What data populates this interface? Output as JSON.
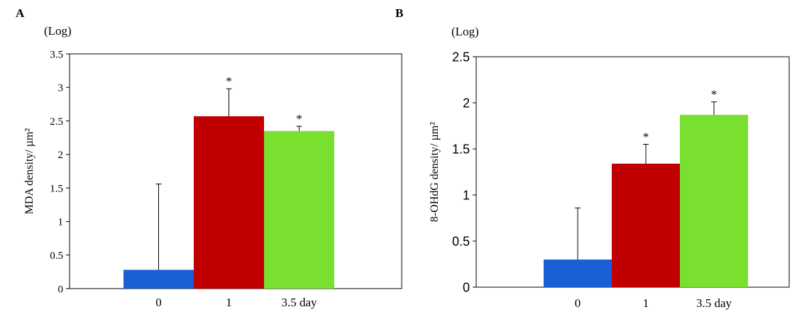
{
  "chart_data": [
    {
      "type": "bar",
      "panel": "A",
      "title": "",
      "ylabel": "MDA density/ µm²",
      "yunit": "(Log)",
      "xlabel": "",
      "ylim": [
        0,
        3.5
      ],
      "yticks": [
        "0",
        "0.5",
        "1",
        "1.5",
        "2",
        "2.5",
        "3",
        "3.5"
      ],
      "categories": [
        "0",
        "1",
        "3.5 day"
      ],
      "values": [
        0.28,
        2.57,
        2.35
      ],
      "error": [
        1.28,
        0.41,
        0.07
      ],
      "significance": [
        "",
        "*",
        "*"
      ],
      "colors": [
        "#1a5fd6",
        "#c00000",
        "#7ae030"
      ],
      "grid": false
    },
    {
      "type": "bar",
      "panel": "B",
      "title": "",
      "ylabel": "8-OHdG density/ µm²",
      "yunit": "(Log)",
      "xlabel": "",
      "ylim": [
        0,
        2.5
      ],
      "yticks": [
        "0",
        "0.5",
        "1",
        "1.5",
        "2",
        "2.5"
      ],
      "categories": [
        "0",
        "1",
        "3.5 day"
      ],
      "values": [
        0.3,
        1.34,
        1.87
      ],
      "error": [
        0.56,
        0.21,
        0.14
      ],
      "significance": [
        "",
        "*",
        "*"
      ],
      "colors": [
        "#1a5fd6",
        "#c00000",
        "#7ae030"
      ],
      "grid": false
    }
  ]
}
